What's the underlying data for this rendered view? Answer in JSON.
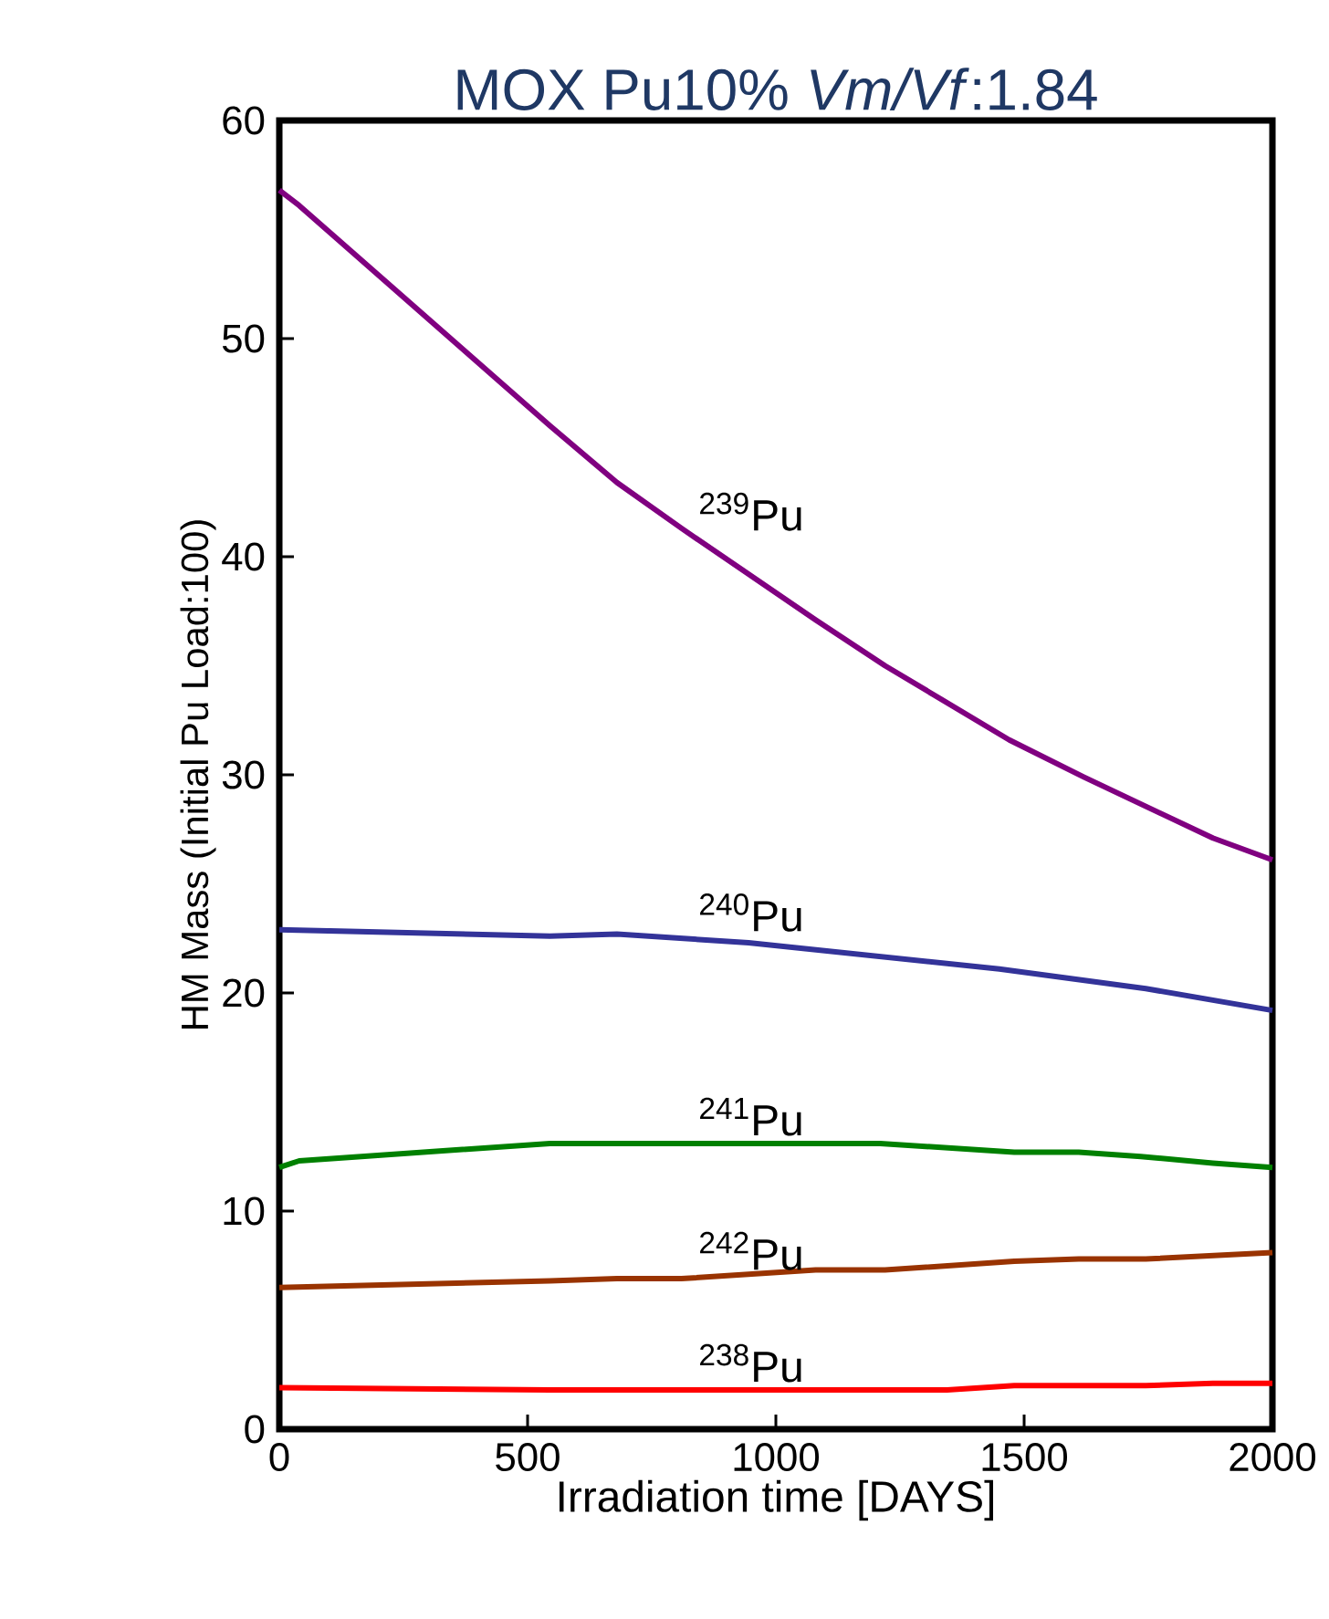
{
  "chart_data": {
    "type": "line",
    "title": "MOX Pu10% *Vm/Vf*:1.84",
    "xlabel": "Irradiation time [DAYS]",
    "ylabel": "HM Mass (Initial Pu Load:100)",
    "xlim": [
      0,
      2000
    ],
    "ylim": [
      0,
      60
    ],
    "xticks": [
      0,
      500,
      1000,
      1500,
      2000
    ],
    "yticks": [
      0,
      10,
      20,
      30,
      40,
      50,
      60
    ],
    "grid": false,
    "legend": false,
    "marker": "none",
    "line_style": "solid",
    "series": [
      {
        "name": "$^{239}$Pu",
        "color": "#800080",
        "x": [
          0,
          40,
          545,
          680,
          810,
          1080,
          1220,
          1470,
          1620,
          1880,
          2000
        ],
        "values": [
          56.8,
          56.1,
          46.0,
          43.4,
          41.3,
          37.1,
          35.0,
          31.6,
          29.9,
          27.1,
          26.1
        ]
      },
      {
        "name": "$^{240}$Pu",
        "color": "#333399",
        "x": [
          0,
          545,
          680,
          945,
          1450,
          1745,
          2000
        ],
        "values": [
          22.9,
          22.6,
          22.7,
          22.3,
          21.1,
          20.2,
          19.2
        ]
      },
      {
        "name": "$^{241}$Pu",
        "color": "#008000",
        "x": [
          0,
          40,
          545,
          1210,
          1480,
          1610,
          1735,
          1880,
          2000
        ],
        "values": [
          12.0,
          12.3,
          13.1,
          13.1,
          12.7,
          12.7,
          12.5,
          12.2,
          12.0
        ]
      },
      {
        "name": "$^{242}$Pu",
        "color": "#993300",
        "x": [
          0,
          545,
          680,
          810,
          1080,
          1220,
          1480,
          1610,
          1745,
          2000
        ],
        "values": [
          6.5,
          6.8,
          6.9,
          6.9,
          7.3,
          7.3,
          7.7,
          7.8,
          7.8,
          8.1
        ]
      },
      {
        "name": "$^{238}$Pu",
        "color": "#ff0000",
        "x": [
          0,
          545,
          1345,
          1480,
          1745,
          1880,
          2000
        ],
        "values": [
          1.9,
          1.8,
          1.8,
          2.0,
          2.0,
          2.1,
          2.1
        ]
      }
    ]
  }
}
